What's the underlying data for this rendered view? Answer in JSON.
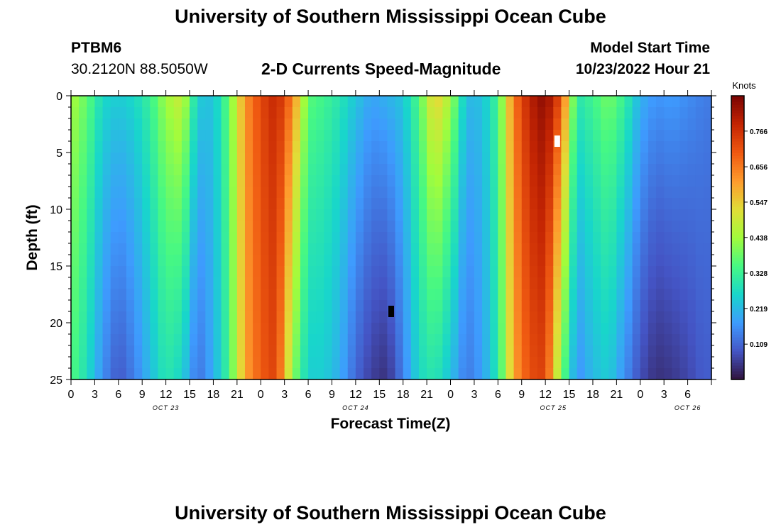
{
  "header": {
    "title": "University of Southern Mississippi Ocean Cube",
    "station": "PTBM6",
    "coordinates": "30.2120N  88.5050W",
    "subtitle": "2-D Currents Speed-Magnitude",
    "model_start_label": "Model Start Time",
    "model_start_value": "10/23/2022 Hour 21"
  },
  "footer": {
    "title": "University of Southern Mississippi Ocean Cube"
  },
  "colors": {
    "background": "#ffffff",
    "text": "#000000",
    "colormap": [
      "#30123b",
      "#4454c4",
      "#3e9bfe",
      "#18d6cb",
      "#46f884",
      "#a2fc3c",
      "#e1dd37",
      "#fe9b2d",
      "#ef5911",
      "#c42503",
      "#7a0403"
    ]
  },
  "chart_data": {
    "type": "heatmap",
    "xlabel": "Forecast Time(Z)",
    "ylabel": "Depth (ft)",
    "colorbar_label": "Knots",
    "x_hours_range": [
      0,
      81
    ],
    "ylim": [
      0,
      25
    ],
    "y_ticks": [
      0,
      5,
      10,
      15,
      20,
      25
    ],
    "x_tick_hours": [
      0,
      3,
      6,
      9,
      12,
      15,
      18,
      21,
      24,
      27,
      30,
      33,
      36,
      39,
      42,
      45,
      48,
      51,
      54,
      57,
      60,
      63,
      66,
      69,
      72,
      75,
      78,
      81
    ],
    "x_tick_labels": [
      "0",
      "3",
      "6",
      "9",
      "12",
      "15",
      "18",
      "21",
      "0",
      "3",
      "6",
      "9",
      "12",
      "15",
      "18",
      "21",
      "0",
      "3",
      "6",
      "9",
      "12",
      "15",
      "18",
      "21",
      "0",
      "3",
      "6"
    ],
    "x_tick_label_hours": [
      0,
      3,
      6,
      9,
      12,
      15,
      18,
      21,
      24,
      27,
      30,
      33,
      36,
      39,
      42,
      45,
      48,
      51,
      54,
      57,
      60,
      63,
      66,
      69,
      72,
      75,
      78
    ],
    "day_labels": [
      {
        "hour": 12,
        "text": "OCT 23"
      },
      {
        "hour": 36,
        "text": "OCT 24"
      },
      {
        "hour": 61,
        "text": "OCT 25"
      },
      {
        "hour": 78,
        "text": "OCT 26"
      }
    ],
    "colorbar_min": 0.0,
    "colorbar_max": 0.875,
    "colorbar_ticks": [
      0.109,
      0.219,
      0.328,
      0.438,
      0.547,
      0.656,
      0.766
    ],
    "columns": [
      {
        "hour": 0,
        "top": 0.45,
        "bottom": 0.36
      },
      {
        "hour": 2,
        "top": 0.38,
        "bottom": 0.28
      },
      {
        "hour": 4,
        "top": 0.27,
        "bottom": 0.16
      },
      {
        "hour": 6,
        "top": 0.25,
        "bottom": 0.09
      },
      {
        "hour": 8,
        "top": 0.27,
        "bottom": 0.14
      },
      {
        "hour": 10,
        "top": 0.33,
        "bottom": 0.22
      },
      {
        "hour": 12,
        "top": 0.44,
        "bottom": 0.3
      },
      {
        "hour": 14,
        "top": 0.5,
        "bottom": 0.26
      },
      {
        "hour": 16,
        "top": 0.25,
        "bottom": 0.12
      },
      {
        "hour": 18,
        "top": 0.23,
        "bottom": 0.2
      },
      {
        "hour": 20,
        "top": 0.38,
        "bottom": 0.34
      },
      {
        "hour": 22,
        "top": 0.62,
        "bottom": 0.6
      },
      {
        "hour": 24,
        "top": 0.73,
        "bottom": 0.7
      },
      {
        "hour": 26,
        "top": 0.79,
        "bottom": 0.74
      },
      {
        "hour": 28,
        "top": 0.66,
        "bottom": 0.42
      },
      {
        "hour": 30,
        "top": 0.37,
        "bottom": 0.25
      },
      {
        "hour": 32,
        "top": 0.34,
        "bottom": 0.25
      },
      {
        "hour": 34,
        "top": 0.3,
        "bottom": 0.2
      },
      {
        "hour": 36,
        "top": 0.24,
        "bottom": 0.11
      },
      {
        "hour": 38,
        "top": 0.19,
        "bottom": 0.06
      },
      {
        "hour": 40,
        "top": 0.21,
        "bottom": 0.04
      },
      {
        "hour": 42,
        "top": 0.24,
        "bottom": 0.14
      },
      {
        "hour": 44,
        "top": 0.36,
        "bottom": 0.27
      },
      {
        "hour": 46,
        "top": 0.56,
        "bottom": 0.3
      },
      {
        "hour": 48,
        "top": 0.45,
        "bottom": 0.23
      },
      {
        "hour": 50,
        "top": 0.22,
        "bottom": 0.13
      },
      {
        "hour": 52,
        "top": 0.23,
        "bottom": 0.18
      },
      {
        "hour": 54,
        "top": 0.34,
        "bottom": 0.3
      },
      {
        "hour": 56,
        "top": 0.66,
        "bottom": 0.6
      },
      {
        "hour": 58,
        "top": 0.8,
        "bottom": 0.72
      },
      {
        "hour": 60,
        "top": 0.86,
        "bottom": 0.74
      },
      {
        "hour": 62,
        "top": 0.72,
        "bottom": 0.4
      },
      {
        "hour": 64,
        "top": 0.3,
        "bottom": 0.16
      },
      {
        "hour": 66,
        "top": 0.34,
        "bottom": 0.22
      },
      {
        "hour": 68,
        "top": 0.4,
        "bottom": 0.25
      },
      {
        "hour": 70,
        "top": 0.33,
        "bottom": 0.16
      },
      {
        "hour": 72,
        "top": 0.21,
        "bottom": 0.08
      },
      {
        "hour": 74,
        "top": 0.17,
        "bottom": 0.04
      },
      {
        "hour": 76,
        "top": 0.18,
        "bottom": 0.05
      },
      {
        "hour": 78,
        "top": 0.16,
        "bottom": 0.07
      },
      {
        "hour": 80,
        "top": 0.14,
        "bottom": 0.1
      }
    ],
    "markers": [
      {
        "hour": 61.5,
        "depth": 4,
        "color": "#ffffff"
      },
      {
        "hour": 40.5,
        "depth": 19,
        "color": "#000000"
      }
    ]
  }
}
